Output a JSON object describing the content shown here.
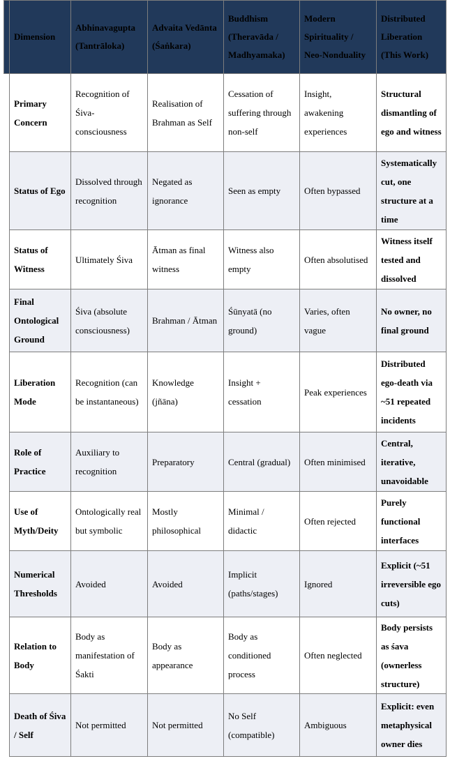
{
  "colors": {
    "header_bg": "#21395A",
    "alt_row_bg": "#EDEFF5",
    "border": "#7D7D7D"
  },
  "table": {
    "columns": [
      "Dimension",
      "Abhinavagupta (Tantrāloka)",
      "Advaita Vedānta (Śaṅkara)",
      "Buddhism (Theravāda / Madhyamaka)",
      "Modern Spirituality / Neo-Nonduality",
      "Distributed Liberation (This Work)"
    ],
    "rows": [
      {
        "dimension": "Primary Concern",
        "values": [
          "Recognition of Śiva-consciousness",
          "Realisation of Brahman as Self",
          "Cessation of suffering through non-self",
          "Insight, awakening experiences",
          "Structural dismantling of ego and witness"
        ]
      },
      {
        "dimension": "Status of Ego",
        "values": [
          "Dissolved through recognition",
          "Negated as ignorance",
          "Seen as empty",
          "Often bypassed",
          "Systematically cut, one structure at a time"
        ]
      },
      {
        "dimension": "Status of Witness",
        "values": [
          "Ultimately Śiva",
          "Ātman as final witness",
          "Witness also empty",
          "Often absolutised",
          "Witness itself tested and dissolved"
        ]
      },
      {
        "dimension": "Final Ontological Ground",
        "values": [
          "Śiva (absolute consciousness)",
          "Brahman / Ātman",
          "Śūnyatā (no ground)",
          "Varies, often vague",
          "No owner, no final ground"
        ]
      },
      {
        "dimension": "Liberation Mode",
        "values": [
          "Recognition (can be instantaneous)",
          "Knowledge (jñāna)",
          "Insight + cessation",
          "Peak experiences",
          "Distributed ego-death via ~51 repeated incidents"
        ]
      },
      {
        "dimension": "Role of Practice",
        "values": [
          "Auxiliary to recognition",
          "Preparatory",
          "Central (gradual)",
          "Often minimised",
          "Central, iterative, unavoidable"
        ]
      },
      {
        "dimension": "Use of Myth/Deity",
        "values": [
          "Ontologically real but symbolic",
          "Mostly philosophical",
          "Minimal / didactic",
          "Often rejected",
          "Purely functional interfaces"
        ]
      },
      {
        "dimension": "Numerical Thresholds",
        "values": [
          "Avoided",
          "Avoided",
          "Implicit (paths/stages)",
          "Ignored",
          "Explicit (~51 irreversible ego cuts)"
        ]
      },
      {
        "dimension": "Relation to Body",
        "values": [
          "Body as manifestation of Śakti",
          "Body as appearance",
          "Body as conditioned process",
          "Often neglected",
          "Body persists as śava (ownerless structure)"
        ]
      },
      {
        "dimension": "Death of Śiva / Self",
        "values": [
          "Not permitted",
          "Not permitted",
          "No Self (compatible)",
          "Ambiguous",
          "Explicit: even metaphysical owner dies"
        ]
      }
    ]
  }
}
